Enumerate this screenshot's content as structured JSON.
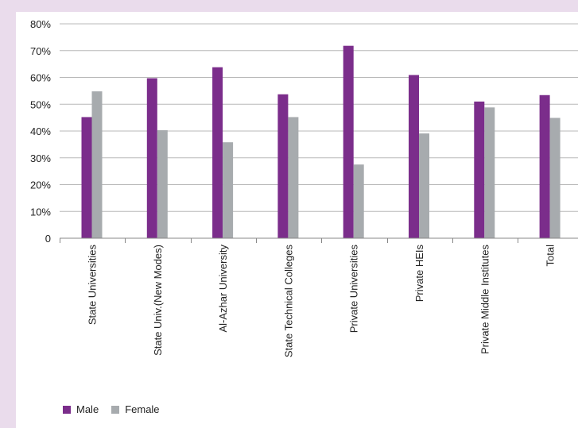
{
  "chart_data": {
    "type": "bar",
    "title": "",
    "xlabel": "",
    "ylabel": "",
    "ylim": [
      0,
      80
    ],
    "yticks": [
      "0",
      "10%",
      "20%",
      "30%",
      "40%",
      "50%",
      "60%",
      "70%",
      "80%"
    ],
    "categories": [
      "State Universities",
      "State Univ.(New Modes)",
      "Al-Azhar University",
      "State Technical Colleges",
      "Private Universities",
      "Private HEIs",
      "Private Middle Institutes",
      "Total"
    ],
    "series": [
      {
        "name": "Male",
        "color": "#7b2d8b",
        "values": [
          45.2,
          59.7,
          63.8,
          53.7,
          71.8,
          60.9,
          51.0,
          53.4
        ]
      },
      {
        "name": "Female",
        "color": "#a7abae",
        "values": [
          54.8,
          40.3,
          35.8,
          45.2,
          27.5,
          39.1,
          48.8,
          44.9
        ]
      }
    ],
    "grid": true,
    "legend_position": "bottom-left"
  }
}
